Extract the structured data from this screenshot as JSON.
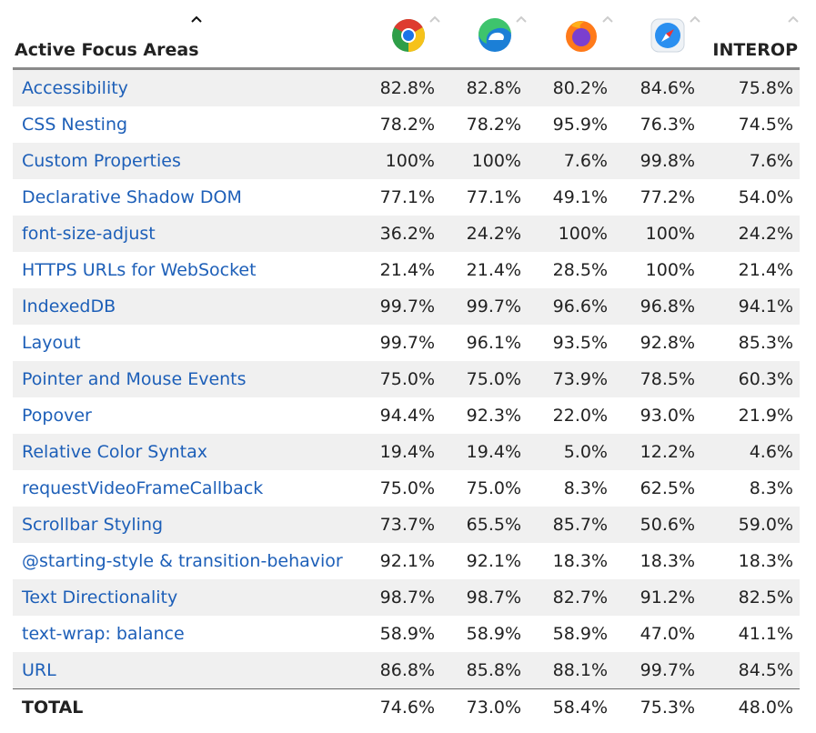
{
  "table": {
    "header": {
      "title": "Active Focus Areas",
      "interop": "INTEROP"
    },
    "rows": [
      {
        "name": "Accessibility",
        "values": [
          "82.8%",
          "82.8%",
          "80.2%",
          "84.6%",
          "75.8%"
        ]
      },
      {
        "name": "CSS Nesting",
        "values": [
          "78.2%",
          "78.2%",
          "95.9%",
          "76.3%",
          "74.5%"
        ]
      },
      {
        "name": "Custom Properties",
        "values": [
          "100%",
          "100%",
          "7.6%",
          "99.8%",
          "7.6%"
        ]
      },
      {
        "name": "Declarative Shadow DOM",
        "values": [
          "77.1%",
          "77.1%",
          "49.1%",
          "77.2%",
          "54.0%"
        ]
      },
      {
        "name": "font-size-adjust",
        "values": [
          "36.2%",
          "24.2%",
          "100%",
          "100%",
          "24.2%"
        ]
      },
      {
        "name": "HTTPS URLs for WebSocket",
        "values": [
          "21.4%",
          "21.4%",
          "28.5%",
          "100%",
          "21.4%"
        ]
      },
      {
        "name": "IndexedDB",
        "values": [
          "99.7%",
          "99.7%",
          "96.6%",
          "96.8%",
          "94.1%"
        ]
      },
      {
        "name": "Layout",
        "values": [
          "99.7%",
          "96.1%",
          "93.5%",
          "92.8%",
          "85.3%"
        ]
      },
      {
        "name": "Pointer and Mouse Events",
        "values": [
          "75.0%",
          "75.0%",
          "73.9%",
          "78.5%",
          "60.3%"
        ]
      },
      {
        "name": "Popover",
        "values": [
          "94.4%",
          "92.3%",
          "22.0%",
          "93.0%",
          "21.9%"
        ]
      },
      {
        "name": "Relative Color Syntax",
        "values": [
          "19.4%",
          "19.4%",
          "5.0%",
          "12.2%",
          "4.6%"
        ]
      },
      {
        "name": "requestVideoFrameCallback",
        "values": [
          "75.0%",
          "75.0%",
          "8.3%",
          "62.5%",
          "8.3%"
        ]
      },
      {
        "name": "Scrollbar Styling",
        "values": [
          "73.7%",
          "65.5%",
          "85.7%",
          "50.6%",
          "59.0%"
        ]
      },
      {
        "name": "@starting-style & transition-behavior",
        "values": [
          "92.1%",
          "92.1%",
          "18.3%",
          "18.3%",
          "18.3%"
        ]
      },
      {
        "name": "Text Directionality",
        "values": [
          "98.7%",
          "98.7%",
          "82.7%",
          "91.2%",
          "82.5%"
        ]
      },
      {
        "name": "text-wrap: balance",
        "values": [
          "58.9%",
          "58.9%",
          "58.9%",
          "47.0%",
          "41.1%"
        ]
      },
      {
        "name": "URL",
        "values": [
          "86.8%",
          "85.8%",
          "88.1%",
          "99.7%",
          "84.5%"
        ]
      }
    ],
    "total": {
      "label": "TOTAL",
      "values": [
        "74.6%",
        "73.0%",
        "58.4%",
        "75.3%",
        "48.0%"
      ]
    }
  }
}
